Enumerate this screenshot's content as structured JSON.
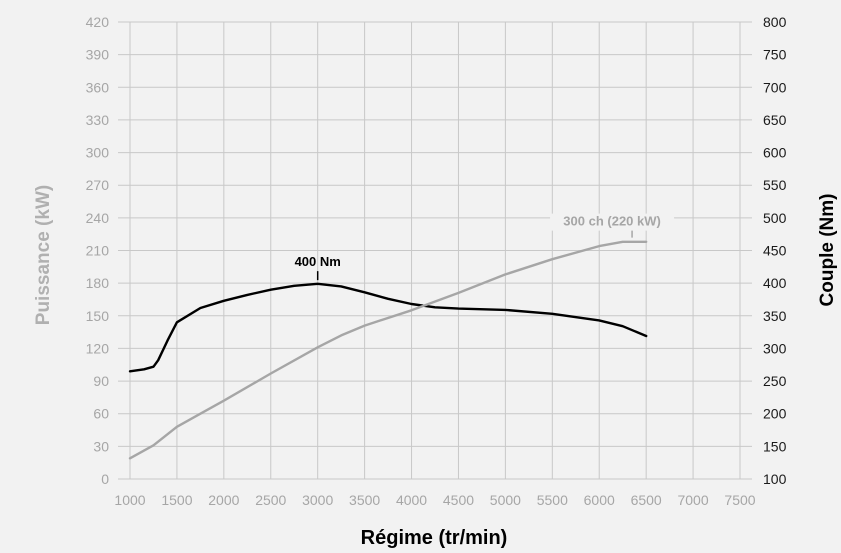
{
  "chart_data": {
    "type": "line",
    "xlabel": "Régime (tr/min)",
    "ylabel_left": "Puissance (kW)",
    "ylabel_right": "Couple (Nm)",
    "x_ticks": [
      1000,
      1500,
      2000,
      2500,
      3000,
      3500,
      4000,
      4500,
      5000,
      5500,
      6000,
      6500,
      7000,
      7500
    ],
    "y_left_ticks": [
      0,
      30,
      60,
      90,
      120,
      150,
      180,
      210,
      240,
      270,
      300,
      330,
      360,
      390,
      420
    ],
    "y_right_ticks": [
      100,
      150,
      200,
      250,
      300,
      350,
      400,
      450,
      500,
      550,
      600,
      650,
      700,
      750,
      800
    ],
    "xlim": [
      1000,
      7500
    ],
    "ylim_left": [
      0,
      420
    ],
    "ylim_right": [
      100,
      800
    ],
    "grid": true,
    "series": [
      {
        "name": "",
        "axis": "right",
        "color": "#000000",
        "x": [
          1000,
          1150,
          1250,
          1300,
          1400,
          1500,
          1750,
          2000,
          2250,
          2500,
          2750,
          3000,
          3250,
          3500,
          3750,
          4000,
          4250,
          4500,
          5000,
          5500,
          6000,
          6250,
          6500
        ],
        "y": [
          265,
          268,
          272,
          282,
          312,
          340,
          362,
          373,
          382,
          390,
          396,
          399,
          395,
          386,
          376,
          368,
          363,
          361,
          359,
          353,
          343,
          334,
          319
        ]
      },
      {
        "name": "",
        "axis": "left",
        "color": "#a6a6a6",
        "x": [
          1000,
          1250,
          1500,
          1750,
          2000,
          2500,
          3000,
          3250,
          3500,
          4000,
          4500,
          5000,
          5500,
          6000,
          6250,
          6500
        ],
        "y": [
          19,
          31,
          48,
          60,
          72,
          97,
          121,
          132,
          141,
          155,
          171,
          188,
          202,
          214,
          218,
          218
        ]
      }
    ],
    "annotations": [
      {
        "text": "400 Nm",
        "series": 0,
        "x": 3000,
        "y": 400
      },
      {
        "text": "300 ch (220 kW)",
        "series": 1,
        "x": 6350,
        "y": 220
      }
    ]
  }
}
